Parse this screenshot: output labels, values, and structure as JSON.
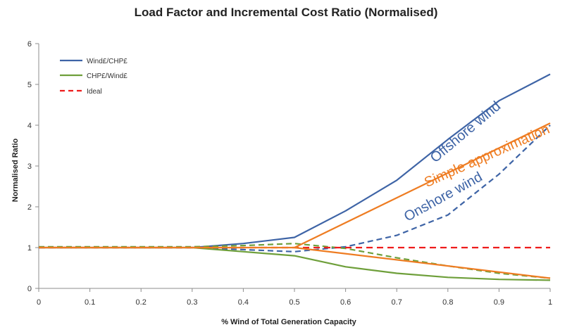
{
  "chart_data": {
    "type": "line",
    "title": "Load Factor and Incremental Cost Ratio (Normalised)",
    "xlabel": "% Wind of Total Generation Capacity",
    "ylabel": "Normalised Ratio",
    "xlim": [
      0,
      1
    ],
    "ylim": [
      0,
      6
    ],
    "xticks": [
      "0",
      "0.1",
      "0.2",
      "0.3",
      "0.4",
      "0.5",
      "0.6",
      "0.7",
      "0.8",
      "0.9",
      "1"
    ],
    "yticks": [
      "0",
      "1",
      "2",
      "3",
      "4",
      "5",
      "6"
    ],
    "grid": false,
    "legend_position": "top-left",
    "legend": [
      {
        "name": "Wind£/CHP£",
        "color": "#3e64a6",
        "dash": "solid"
      },
      {
        "name": "CHP£/Wind£",
        "color": "#6e9f3a",
        "dash": "solid"
      },
      {
        "name": "Ideal",
        "color": "#ee1c1c",
        "dash": "dashed"
      }
    ],
    "series": [
      {
        "key": "offshore_up",
        "color": "#3e64a6",
        "dash": "solid",
        "x": [
          0,
          0.1,
          0.2,
          0.3,
          0.4,
          0.5,
          0.6,
          0.7,
          0.8,
          0.9,
          1
        ],
        "y": [
          1.0,
          1.0,
          1.0,
          1.0,
          1.1,
          1.25,
          1.9,
          2.65,
          3.65,
          4.6,
          5.25
        ]
      },
      {
        "key": "onshore_up",
        "color": "#3e64a6",
        "dash": "dashed",
        "x": [
          0,
          0.1,
          0.2,
          0.3,
          0.4,
          0.5,
          0.6,
          0.7,
          0.8,
          0.9,
          1
        ],
        "y": [
          1.0,
          1.0,
          1.0,
          1.0,
          0.95,
          0.9,
          1.02,
          1.3,
          1.8,
          2.8,
          4.0
        ]
      },
      {
        "key": "offshore_down",
        "color": "#6e9f3a",
        "dash": "solid",
        "x": [
          0,
          0.1,
          0.2,
          0.3,
          0.4,
          0.5,
          0.6,
          0.7,
          0.8,
          0.9,
          1
        ],
        "y": [
          1.0,
          1.0,
          1.0,
          1.0,
          0.9,
          0.8,
          0.53,
          0.37,
          0.27,
          0.22,
          0.2
        ]
      },
      {
        "key": "onshore_down",
        "color": "#6e9f3a",
        "dash": "dashed",
        "x": [
          0,
          0.1,
          0.2,
          0.3,
          0.4,
          0.5,
          0.6,
          0.7,
          0.8,
          0.9,
          1
        ],
        "y": [
          1.02,
          1.02,
          1.02,
          1.02,
          1.05,
          1.1,
          0.98,
          0.75,
          0.55,
          0.37,
          0.25
        ]
      },
      {
        "key": "ideal",
        "color": "#ee1c1c",
        "dash": "dashed",
        "x": [
          0,
          1
        ],
        "y": [
          1.0,
          1.0
        ]
      },
      {
        "key": "approx_flat",
        "color": "#ee7c22",
        "dash": "solid",
        "x": [
          0,
          0.5
        ],
        "y": [
          1.0,
          1.0
        ]
      },
      {
        "key": "approx_up",
        "color": "#ee7c22",
        "dash": "solid",
        "x": [
          0.5,
          1
        ],
        "y": [
          1.0,
          4.05
        ]
      },
      {
        "key": "approx_down",
        "color": "#ee7c22",
        "dash": "solid",
        "x": [
          0.5,
          1
        ],
        "y": [
          1.0,
          0.25
        ]
      }
    ],
    "annotations": [
      {
        "text": "Offshore wind",
        "color": "#3e64a6",
        "x": 0.84,
        "y": 3.75,
        "angle": -40
      },
      {
        "text": "Simple approximation",
        "color": "#ee7c22",
        "x": 0.88,
        "y": 3.15,
        "angle": -24
      },
      {
        "text": "Onshore wind",
        "color": "#3e64a6",
        "x": 0.795,
        "y": 2.15,
        "angle": -29
      }
    ]
  }
}
